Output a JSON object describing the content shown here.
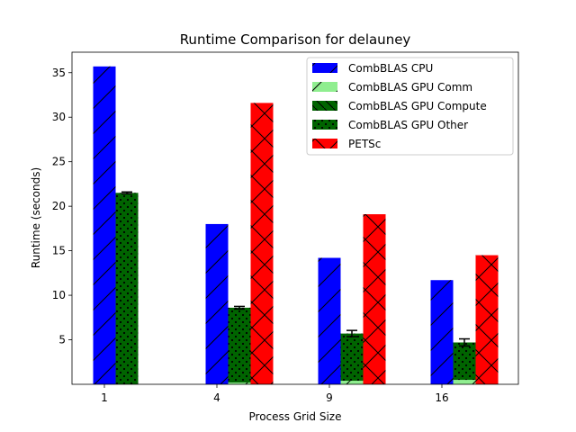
{
  "chart_data": {
    "type": "bar",
    "title": "Runtime Comparison for delauney",
    "xlabel": "Process Grid Size",
    "ylabel": "Runtime (seconds)",
    "categories": [
      "1",
      "4",
      "9",
      "16"
    ],
    "ylim": [
      0,
      37.3
    ],
    "yticks": [
      5,
      10,
      15,
      20,
      25,
      30,
      35
    ],
    "grid": false,
    "legend_position": "top-right",
    "series": [
      {
        "name": "CombBLAS CPU",
        "values": [
          35.7,
          18.0,
          14.2,
          11.7
        ],
        "color": "#0000ff",
        "hatch": "slash"
      },
      {
        "name": "CombBLAS GPU Comm",
        "values": [
          0.0,
          0.2,
          0.4,
          0.5
        ],
        "color": "#90ee90",
        "hatch": "slash"
      },
      {
        "name": "CombBLAS GPU Compute",
        "values": [
          0.0,
          0.0,
          0.0,
          0.0
        ],
        "color": "#006400",
        "hatch": "backslash"
      },
      {
        "name": "CombBLAS GPU Other",
        "values": [
          21.5,
          8.4,
          5.3,
          4.2
        ],
        "color": "#006400",
        "hatch": "dots"
      },
      {
        "name": "PETSc",
        "values": [
          null,
          31.6,
          19.1,
          14.5
        ],
        "color": "#ff0000",
        "hatch": "cross"
      }
    ],
    "gpu_error": [
      0.1,
      0.15,
      0.35,
      0.4
    ]
  }
}
